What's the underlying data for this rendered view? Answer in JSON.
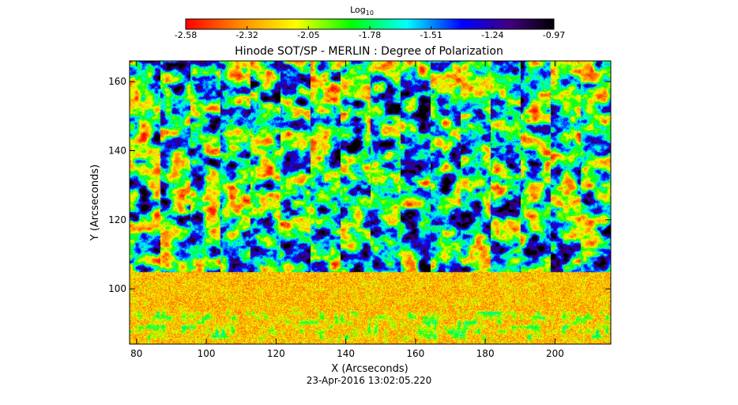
{
  "chart_data": {
    "type": "heatmap",
    "title": "Hinode SOT/SP - MERLIN : Degree of Polarization",
    "xlabel": "X (Arcseconds)",
    "ylabel": "Y (Arcseconds)",
    "timestamp": "23-Apr-2016 13:02:05.220",
    "xlim": [
      78,
      216
    ],
    "ylim": [
      84,
      166
    ],
    "x_ticks": [
      80,
      100,
      120,
      140,
      160,
      180,
      200
    ],
    "y_ticks": [
      100,
      120,
      140,
      160
    ],
    "colorbar": {
      "label_base": "Log",
      "label_sub": "10",
      "range": [
        -2.58,
        -0.97
      ],
      "ticks": [
        "-2.58",
        "-2.32",
        "-2.05",
        "-1.78",
        "-1.51",
        "-1.24",
        "-0.97"
      ],
      "colors": [
        "#ff0000",
        "#ff8c00",
        "#ffff00",
        "#00ff00",
        "#00ffff",
        "#0000ff",
        "#000000"
      ]
    },
    "panel_columns": 16,
    "panel_column_width_arcsec": 8.7
  }
}
